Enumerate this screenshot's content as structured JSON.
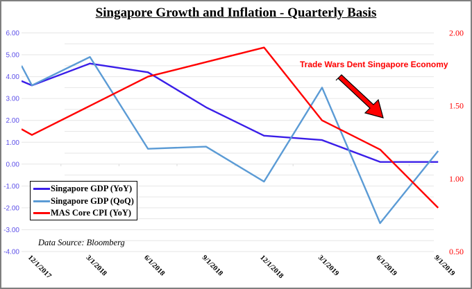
{
  "chart_data": {
    "type": "line",
    "title": "Singapore Growth and Inflation - Quarterly Basis",
    "xlabel": "",
    "ylabel_left": "",
    "ylabel_right": "",
    "categories": [
      "12/1/2017",
      "3/1/2018",
      "6/1/2018",
      "9/1/2018",
      "12/1/2018",
      "3/1/2019",
      "6/1/2019",
      "9/1/2019"
    ],
    "left_axis": {
      "range": [
        -4.0,
        6.0
      ],
      "ticks": [
        "6.00",
        "5.00",
        "4.00",
        "3.00",
        "2.00",
        "1.00",
        "0.00",
        "-1.00",
        "-2.00",
        "-3.00",
        "-4.00"
      ],
      "tick_values": [
        6,
        5,
        4,
        3,
        2,
        1,
        0,
        -1,
        -2,
        -3,
        -4
      ],
      "color": "#5b4ee8"
    },
    "right_axis": {
      "range": [
        0.5,
        2.0
      ],
      "ticks": [
        "2.00",
        "1.50",
        "1.00",
        "0.50"
      ],
      "tick_values": [
        2.0,
        1.5,
        1.0,
        0.5
      ],
      "color": "#ff0000"
    },
    "grid": true,
    "series": [
      {
        "name": "Singapore GDP (YoY)",
        "axis": "left",
        "color": "#3a1ee8",
        "lead_in_value": 3.8,
        "values": [
          3.6,
          4.6,
          4.2,
          2.6,
          1.3,
          1.1,
          0.1,
          0.1
        ]
      },
      {
        "name": "Singapore GDP (QoQ)",
        "axis": "left",
        "color": "#5b9bd5",
        "lead_in_value": 4.5,
        "values": [
          3.6,
          4.9,
          0.7,
          0.8,
          -0.8,
          3.5,
          -2.7,
          0.6
        ]
      },
      {
        "name": "MAS Core CPI (YoY)",
        "axis": "right",
        "color": "#ff0000",
        "lead_in_value": 1.34,
        "values": [
          1.3,
          1.5,
          1.7,
          1.8,
          1.9,
          1.4,
          1.2,
          0.8
        ]
      }
    ],
    "legend_position": "bottom-left",
    "annotations": [
      {
        "text": "Trade Wars Dent Singapore Economy",
        "color": "#ff0000",
        "arrow": "down-right toward 6/1/2019"
      }
    ],
    "source_note": "Data Source: Bloomberg"
  }
}
